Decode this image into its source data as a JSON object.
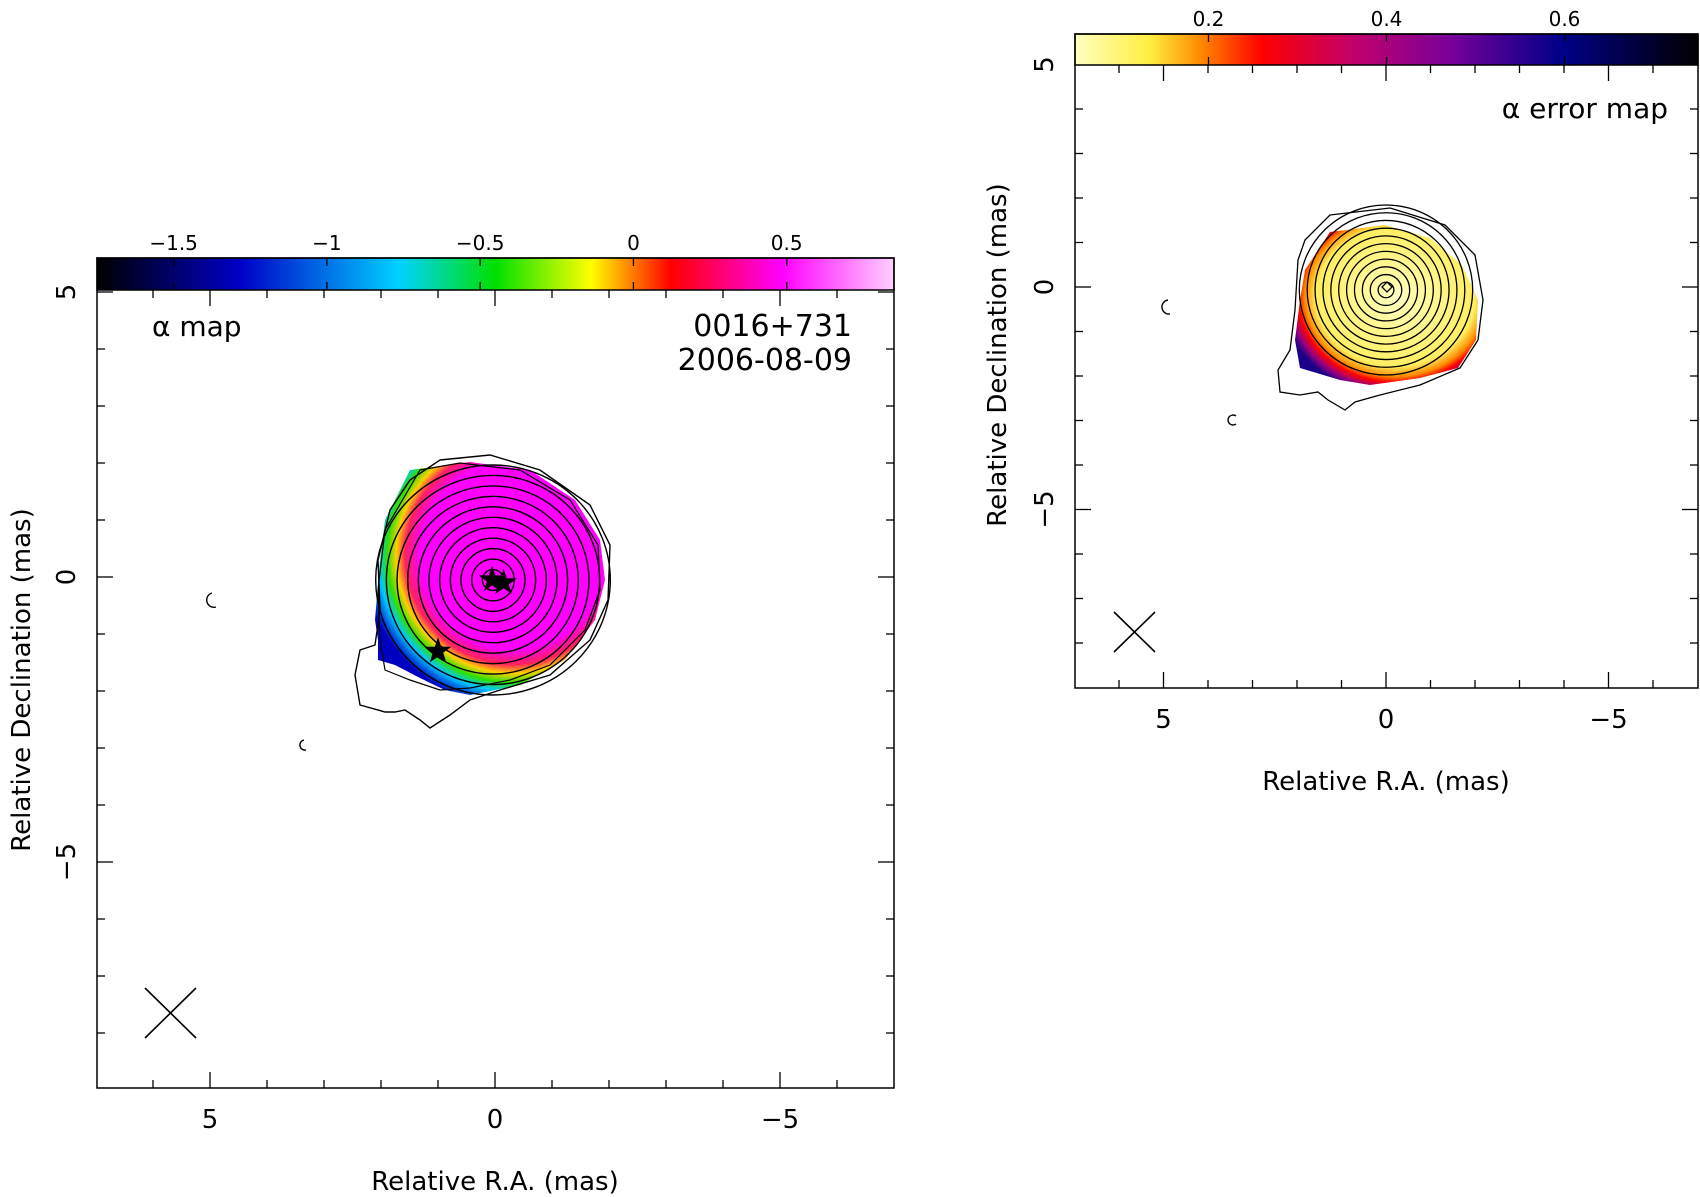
{
  "chart_data": [
    {
      "type": "heatmap",
      "panel": "left",
      "xlabel": "Relative R.A. (mas)",
      "ylabel": "Relative Declination (mas)",
      "xlim": [
        7,
        -7
      ],
      "ylim": [
        -9,
        5
      ],
      "xticks": [
        "5",
        "0",
        "−5"
      ],
      "yticks": [
        "5",
        "0",
        "−5"
      ],
      "colorbar": {
        "ticks": [
          "−1.5",
          "−1",
          "−0.5",
          "0",
          "0.5"
        ],
        "tick_values": [
          -1.5,
          -1,
          -0.5,
          0,
          0.5
        ],
        "range": [
          -1.75,
          0.85
        ],
        "colormap": "rainbow (black-blue-cyan-green-yellow-red-magenta-white)"
      },
      "annotations": {
        "map_label": "α map",
        "source": "0016+731",
        "date": "2006-08-09"
      },
      "contours_center": [
        0,
        0
      ],
      "star_markers": [
        [
          0.05,
          -0.05
        ],
        [
          -0.15,
          -0.1
        ],
        [
          1.0,
          -1.3
        ]
      ],
      "beam_position": [
        5.8,
        -7.8
      ]
    },
    {
      "type": "heatmap",
      "panel": "right",
      "xlabel": "Relative R.A. (mas)",
      "ylabel": "Relative Declination (mas)",
      "xlim": [
        7,
        -7
      ],
      "ylim": [
        -9,
        5
      ],
      "xticks": [
        "5",
        "0",
        "−5"
      ],
      "yticks": [
        "5",
        "0",
        "−5"
      ],
      "colorbar": {
        "ticks": [
          "0.2",
          "0.4",
          "0.6"
        ],
        "tick_values": [
          0.2,
          0.4,
          0.6
        ],
        "range": [
          0.05,
          0.75
        ],
        "colormap": "yellow-red-purple-blue-black"
      },
      "annotations": {
        "map_label": "α error map"
      },
      "contours_center": [
        0,
        0
      ],
      "beam_position": [
        5.8,
        -7.8
      ]
    }
  ]
}
